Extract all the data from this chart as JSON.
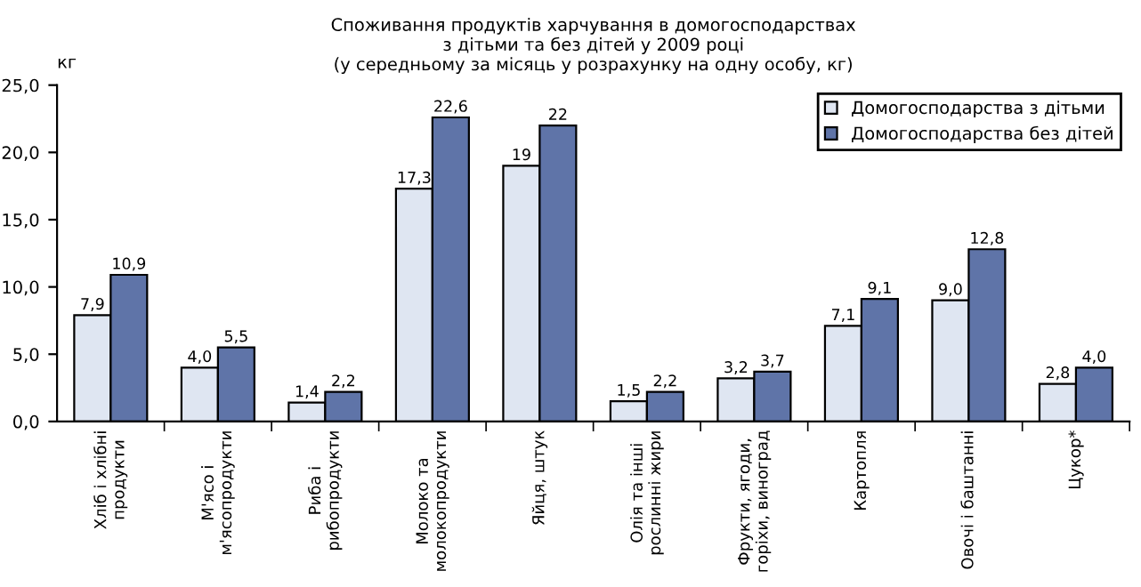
{
  "chart_data": {
    "type": "bar",
    "title": "Споживання продуктів харчування в домогосподарствах\nз дітьми та без дітей у 2009 році\n(у середньому за місяць у розрахунку на одну особу, кг)",
    "ylabel": "кг",
    "categories": [
      "Хліб і хлібні\nпродукти",
      "М'ясо і\nм'ясопродукти",
      "Риба і\nрибопродукти",
      "Молоко та\nмолокопродукти",
      "Яйця, штук",
      "Олія та інші\nрослинні жири",
      "Фрукти, ягоди,\nгоріхи, виноград",
      "Картопля",
      "Овочі і баштанні",
      "Цукор*"
    ],
    "series": [
      {
        "name": "Домогосподарства з дітьми",
        "color": "#dfe6f2",
        "values": [
          7.9,
          4.0,
          1.4,
          17.3,
          19,
          1.5,
          3.2,
          7.1,
          9.0,
          2.8
        ],
        "value_labels": [
          "7,9",
          "4,0",
          "1,4",
          "17,3",
          "19",
          "1,5",
          "3,2",
          "7,1",
          "9,0",
          "2,8"
        ]
      },
      {
        "name": "Домогосподарства без дітей",
        "color": "#5f74a8",
        "values": [
          10.9,
          5.5,
          2.2,
          22.6,
          22,
          2.2,
          3.7,
          9.1,
          12.8,
          4.0
        ],
        "value_labels": [
          "10,9",
          "5,5",
          "2,2",
          "22,6",
          "22",
          "2,2",
          "3,7",
          "9,1",
          "12,8",
          "4,0"
        ]
      }
    ],
    "ylim": [
      0,
      25
    ],
    "yticks": [
      {
        "value": 0,
        "label": "0,0"
      },
      {
        "value": 5,
        "label": "5,0"
      },
      {
        "value": 10,
        "label": "10,0"
      },
      {
        "value": 15,
        "label": "15,0"
      },
      {
        "value": 20,
        "label": "20,0"
      },
      {
        "value": 25,
        "label": "25,0"
      }
    ],
    "grid": false,
    "legend": "top right"
  }
}
